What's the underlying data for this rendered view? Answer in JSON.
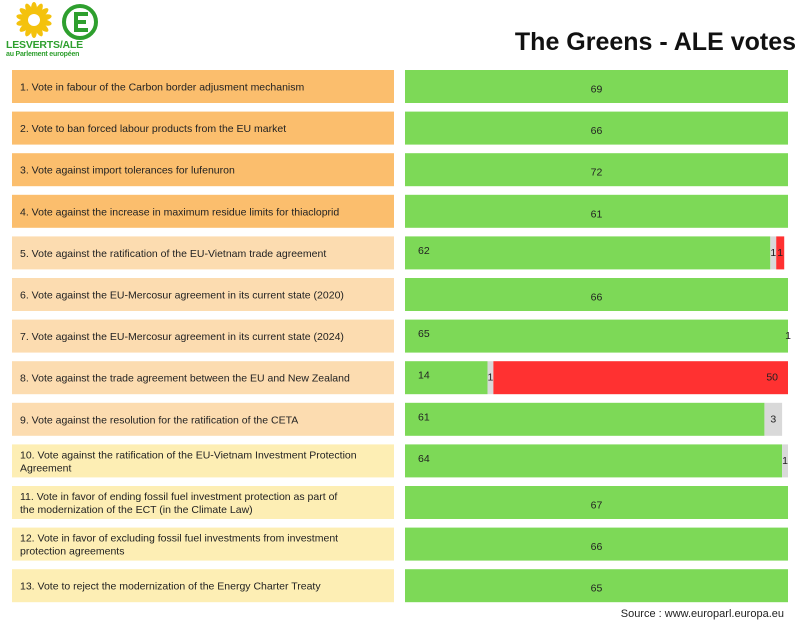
{
  "logo": {
    "line1": "LESVERTS/ALE",
    "line2": "au Parlement européen",
    "colors": {
      "sunflower": "#f4c20d",
      "circle": "#2e9f2e"
    }
  },
  "title": "The Greens - ALE votes",
  "source": "Source : www.europarl.europa.eu",
  "colors": {
    "label_orange": "#fbbe6d",
    "label_peach": "#fcdcb0",
    "label_yellow": "#fdeeb4",
    "for": "#7dd957",
    "abstain": "#d9d9d9",
    "against": "#ff3131"
  },
  "chart_data": {
    "type": "bar",
    "orientation": "horizontal",
    "stacked": true,
    "title": "The Greens - ALE votes",
    "categories": [
      "1. Vote in fabour of the Carbon border adjusment mechanism",
      "2. Vote to ban forced labour products from the EU market",
      "3. Vote against import tolerances for lufenuron",
      "4. Vote against the increase in maximum residue limits for thiacloprid",
      "5. Vote against the ratification of the EU-Vietnam trade agreement",
      "6. Vote against the EU-Mercosur agreement in its current state (2020)",
      "7. Vote against the EU-Mercosur agreement in its current state (2024)",
      "8. Vote against the trade agreement between the EU and New Zealand",
      "9. Vote against the resolution for the ratification of the CETA",
      "10.  Vote against the ratification of the EU-Vietnam Investment Protection Agreement",
      "11. Vote in favor of ending fossil fuel investment protection as part of the modernization of the ECT (in the Climate Law)",
      "12. Vote in favor of excluding fossil fuel investments from investment protection agreements",
      "13. Vote to reject the modernization of the Energy Charter Treaty"
    ],
    "label_styles": [
      "orange",
      "orange",
      "orange",
      "orange",
      "peach",
      "peach",
      "peach",
      "peach",
      "peach",
      "yellow",
      "yellow",
      "yellow",
      "yellow"
    ],
    "series": [
      {
        "color": "#7dd957",
        "values": [
          69,
          66,
          72,
          61,
          62,
          66,
          65,
          14,
          61,
          64,
          67,
          66,
          65
        ]
      },
      {
        "color": "#d9d9d9",
        "values": [
          0,
          0,
          0,
          0,
          1,
          0,
          1,
          1,
          3,
          1,
          0,
          0,
          0
        ]
      },
      {
        "color": "#ff3131",
        "values": [
          0,
          0,
          0,
          0,
          1,
          0,
          0,
          50,
          0,
          0,
          0,
          0,
          0
        ]
      }
    ]
  }
}
